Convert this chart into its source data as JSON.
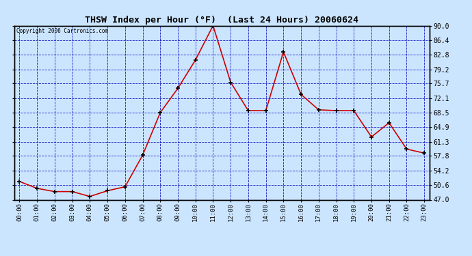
{
  "title": "THSW Index per Hour (°F)  (Last 24 Hours) 20060624",
  "copyright": "Copyright 2006 Cartronics.com",
  "hours": [
    0,
    1,
    2,
    3,
    4,
    5,
    6,
    7,
    8,
    9,
    10,
    11,
    12,
    13,
    14,
    15,
    16,
    17,
    18,
    19,
    20,
    21,
    22,
    23
  ],
  "values": [
    51.5,
    49.8,
    49.0,
    49.0,
    47.8,
    49.2,
    50.2,
    58.0,
    68.5,
    74.5,
    81.5,
    90.0,
    76.0,
    69.0,
    69.0,
    83.5,
    73.0,
    69.2,
    69.0,
    69.0,
    62.5,
    66.0,
    59.5,
    58.5
  ],
  "xlabel_hours": [
    "00:00",
    "01:00",
    "02:00",
    "03:00",
    "04:00",
    "05:00",
    "06:00",
    "07:00",
    "08:00",
    "09:00",
    "10:00",
    "11:00",
    "12:00",
    "13:00",
    "14:00",
    "15:00",
    "16:00",
    "17:00",
    "18:00",
    "19:00",
    "20:00",
    "21:00",
    "22:00",
    "23:00"
  ],
  "yticks": [
    47.0,
    50.6,
    54.2,
    57.8,
    61.3,
    64.9,
    68.5,
    72.1,
    75.7,
    79.2,
    82.8,
    86.4,
    90.0
  ],
  "ymin": 47.0,
  "ymax": 90.0,
  "line_color": "#cc0000",
  "marker_color": "#000000",
  "bg_color": "#cce5ff",
  "plot_bg_color": "#cce5ff",
  "grid_color": "#0000bb",
  "title_color": "#000000",
  "axis_label_color": "#000000",
  "figwidth": 6.9,
  "figheight": 3.75,
  "dpi": 100
}
